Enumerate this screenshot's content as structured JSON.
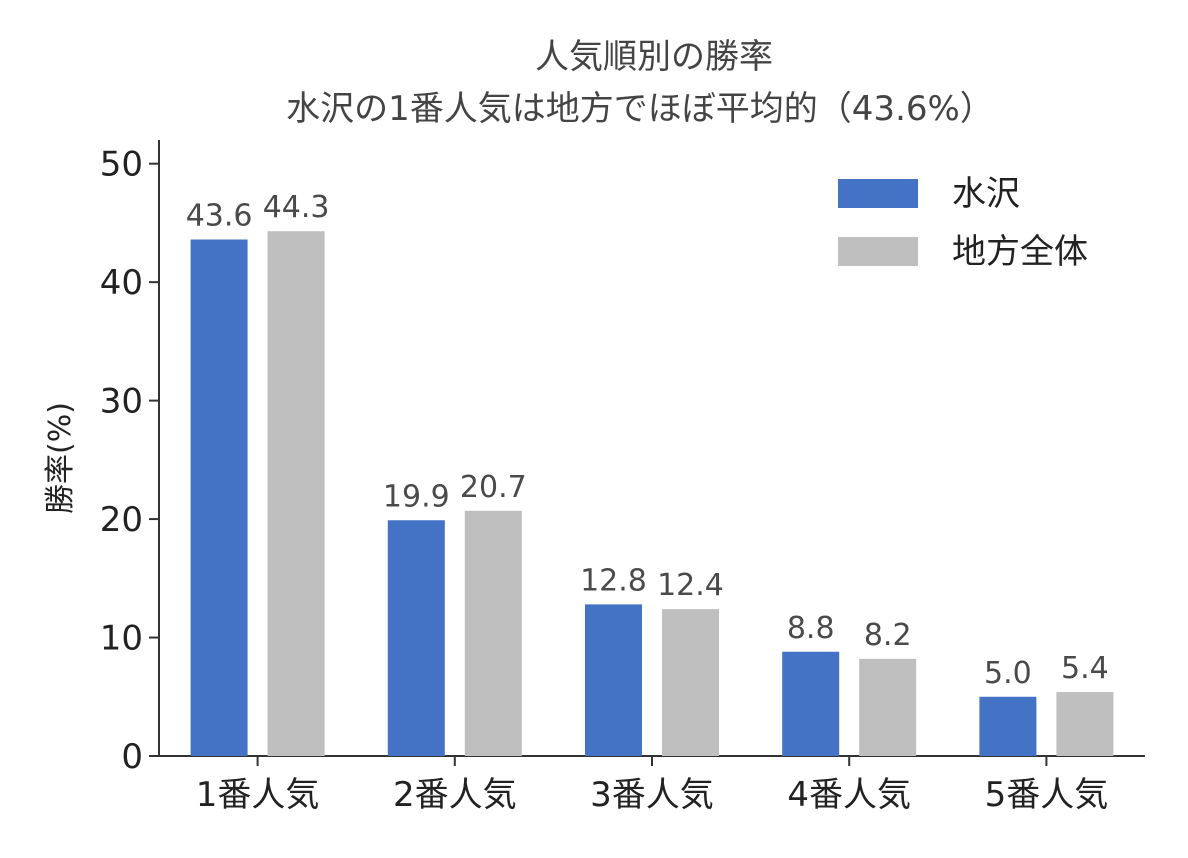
{
  "chart_data": {
    "type": "bar",
    "title": "人気順別の勝率",
    "subtitle": "水沢の1番人気は地方でほぼ平均的（43.6%）",
    "xlabel": "",
    "ylabel": "勝率(%)",
    "categories": [
      "1番人気",
      "2番人気",
      "3番人気",
      "4番人気",
      "5番人気"
    ],
    "series": [
      {
        "name": "水沢",
        "values": [
          43.6,
          19.9,
          12.8,
          8.8,
          5.0
        ],
        "color": "#4472C4"
      },
      {
        "name": "地方全体",
        "values": [
          44.3,
          20.7,
          12.4,
          8.2,
          5.4
        ],
        "color": "#BFBFBF"
      }
    ],
    "value_labels": [
      [
        "43.6",
        "19.9",
        "12.8",
        "8.8",
        "5.0"
      ],
      [
        "44.3",
        "20.7",
        "12.4",
        "8.2",
        "5.4"
      ]
    ],
    "ylim": [
      0,
      52
    ],
    "yticks": [
      0,
      10,
      20,
      30,
      40,
      50
    ],
    "grid": false,
    "legend_position": "top-right"
  }
}
